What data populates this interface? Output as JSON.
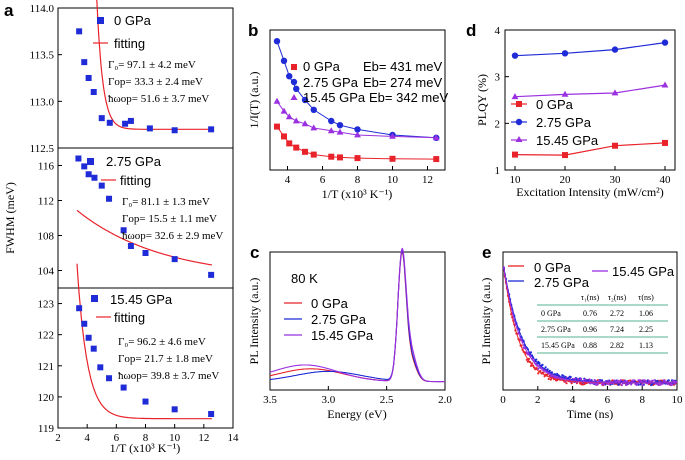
{
  "colors": {
    "red": "#e8232a",
    "blue": "#1f2bd6",
    "purple": "#9b30e0",
    "black": "#000000",
    "teal": "#1a9e6e"
  },
  "panel_labels": [
    "a",
    "b",
    "c",
    "d",
    "e"
  ],
  "chart_data": [
    {
      "panel": "a",
      "type": "scatter",
      "xlabel": "1/T (x10³ K⁻¹)",
      "ylabel": "FWHM (meV)",
      "xlim": [
        2,
        14
      ],
      "xticks": [
        "2",
        "4",
        "6",
        "8",
        "10",
        "12",
        "14"
      ],
      "subplots": [
        {
          "ylim": [
            112.5,
            114.0
          ],
          "yticks": [
            "112.5",
            "113.0",
            "113.5",
            "114.0"
          ],
          "legend": [
            "0 GPa",
            "fitting"
          ],
          "params": [
            "Γ₀= 97.1 ± 4.2 meV",
            "Γop= 33.3 ± 2.4 meV",
            "ħωop= 51.6 ± 3.7 meV"
          ],
          "x": [
            3.45,
            3.8,
            4.1,
            4.45,
            5.0,
            5.55,
            6.6,
            7.0,
            8.3,
            10.0,
            12.5
          ],
          "y": [
            113.75,
            113.42,
            113.25,
            113.1,
            112.82,
            112.77,
            112.76,
            112.79,
            112.71,
            112.69,
            112.7
          ],
          "fit": {
            "Gamma0": 112.7,
            "A": 110000,
            "E": 2.42
          }
        },
        {
          "ylim": [
            102,
            118
          ],
          "yticks": [
            "104",
            "108",
            "112",
            "116"
          ],
          "legend": [
            "2.75 GPa",
            "fitting"
          ],
          "params": [
            "Γ₀= 81.1 ± 1.3 meV",
            "Γop= 15.5 ± 1.1 meV",
            "ħωop= 32.6 ± 2.9 meV"
          ],
          "x": [
            3.4,
            3.8,
            4.1,
            4.5,
            5.0,
            5.5,
            6.5,
            7.0,
            8.0,
            10.0,
            12.5
          ],
          "y": [
            116.8,
            115.9,
            115.0,
            114.6,
            113.7,
            112.2,
            108.6,
            106.8,
            106.0,
            105.3,
            103.5
          ],
          "fit": {
            "Gamma0": 103.0,
            "A": 13.8,
            "E": 0.17
          }
        },
        {
          "ylim": [
            119,
            123.5
          ],
          "yticks": [
            "119",
            "120",
            "121",
            "122",
            "123"
          ],
          "legend": [
            "15.45 GPa",
            "fitting"
          ],
          "params": [
            "Γ₀= 96.2 ± 4.6 meV",
            "Γop= 21.7 ± 1.8 meV",
            "ħωop= 39.8 ± 3.7 meV"
          ],
          "x": [
            3.45,
            3.8,
            4.1,
            4.45,
            4.9,
            5.5,
            6.5,
            8.0,
            10.0,
            12.5
          ],
          "y": [
            122.85,
            122.35,
            121.9,
            121.55,
            120.95,
            120.6,
            120.3,
            119.85,
            119.6,
            119.45
          ],
          "fit": {
            "Gamma0": 119.3,
            "A": 540,
            "E": 1.42
          }
        }
      ]
    },
    {
      "panel": "b",
      "type": "line",
      "xlabel": "1/T (x10³ K⁻¹)",
      "ylabel": "1/I(T) (a.u.)",
      "xlim": [
        3,
        13
      ],
      "xticks": [
        "4",
        "6",
        "8",
        "10",
        "12"
      ],
      "ylim": [
        0,
        1
      ],
      "series": [
        {
          "name": "0 GPa",
          "note": "Eb= 431 meV",
          "x": [
            3.4,
            3.8,
            4.1,
            4.5,
            5.0,
            5.5,
            6.5,
            7.0,
            8.0,
            10.0,
            12.5
          ],
          "y": [
            0.31,
            0.24,
            0.19,
            0.16,
            0.13,
            0.11,
            0.095,
            0.09,
            0.085,
            0.08,
            0.078
          ]
        },
        {
          "name": "2.75 GPa",
          "note": "Eb= 274 meV",
          "x": [
            3.4,
            3.8,
            4.1,
            4.5,
            5.0,
            5.5,
            6.5,
            7.0,
            8.0,
            10.0,
            12.5
          ],
          "y": [
            0.92,
            0.78,
            0.67,
            0.58,
            0.5,
            0.43,
            0.35,
            0.32,
            0.29,
            0.25,
            0.23
          ]
        },
        {
          "name": "15.45 GPa",
          "note": "Eb= 342 meV",
          "x": [
            3.4,
            3.8,
            4.1,
            4.5,
            5.0,
            5.5,
            6.5,
            7.0,
            8.0,
            10.0,
            12.5
          ],
          "y": [
            0.49,
            0.42,
            0.38,
            0.35,
            0.33,
            0.3,
            0.28,
            0.27,
            0.25,
            0.24,
            0.23
          ]
        }
      ]
    },
    {
      "panel": "c",
      "type": "line",
      "xlabel": "Energy (eV)",
      "ylabel": "PL Intensity (a.u.)",
      "xlim": [
        3.5,
        2.0
      ],
      "xticks": [
        "3.5",
        "3.0",
        "2.5",
        "2.0"
      ],
      "annotation": "80 K",
      "series": [
        {
          "name": "0 GPa"
        },
        {
          "name": "2.75 GPa"
        },
        {
          "name": "15.45 GPa"
        }
      ]
    },
    {
      "panel": "d",
      "type": "line",
      "xlabel": "Excitation Intensity (mW/cm²)",
      "ylabel": "PLQY (%)",
      "xlim": [
        8,
        42
      ],
      "xticks": [
        "10",
        "20",
        "30",
        "40"
      ],
      "ylim": [
        1,
        4
      ],
      "yticks": [
        "1",
        "2",
        "3",
        "4"
      ],
      "x": [
        10,
        20,
        30,
        40
      ],
      "series": [
        {
          "name": "0 GPa",
          "y": [
            1.33,
            1.32,
            1.52,
            1.58
          ]
        },
        {
          "name": "2.75 GPa",
          "y": [
            3.45,
            3.5,
            3.58,
            3.73
          ]
        },
        {
          "name": "15.45 GPa",
          "y": [
            2.57,
            2.62,
            2.65,
            2.82
          ]
        }
      ]
    },
    {
      "panel": "e",
      "type": "scatter",
      "xlabel": "Time (ns)",
      "ylabel": "PL Intensity (a.u.)",
      "xlim": [
        0,
        10
      ],
      "xticks": [
        "0",
        "2",
        "4",
        "6",
        "8",
        "10"
      ],
      "series": [
        {
          "name": "0 GPa",
          "tau1": "0.76",
          "tau2": "2.72",
          "tau": "1.06"
        },
        {
          "name": "2.75 GPa",
          "tau1": "0.96",
          "tau2": "7.24",
          "tau": "2.25"
        },
        {
          "name": "15.45 GPa",
          "tau1": "0.88",
          "tau2": "2.82",
          "tau": "1.13"
        }
      ],
      "table_headers": [
        "",
        "τ₁(ns)",
        "τ₂(ns)",
        "τ(ns)"
      ]
    }
  ]
}
